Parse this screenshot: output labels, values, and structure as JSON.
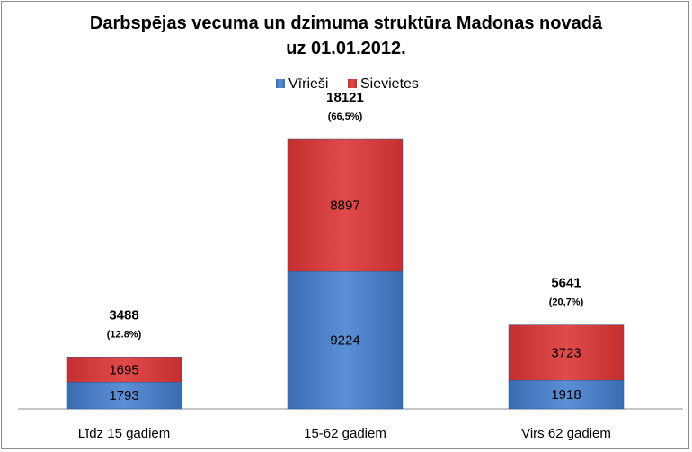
{
  "chart_data": {
    "type": "bar",
    "stacked": true,
    "title": [
      "Darbspējas vecuma un dzimuma struktūra Madonas novadā",
      "uz 01.01.2012."
    ],
    "categories": [
      "Līdz 15 gadiem",
      "15-62 gadiem",
      "Virs 62 gadiem"
    ],
    "series": [
      {
        "name": "Vīrieši",
        "values": [
          1793,
          9224,
          1918
        ],
        "color": "#4a7ebb"
      },
      {
        "name": "Sievietes",
        "values": [
          1695,
          8897,
          3723
        ],
        "color": "#d23a3a"
      }
    ],
    "totals": [
      "3488",
      "18121",
      "5641"
    ],
    "percent_labels": [
      "(12.8%)",
      "(66,5%)",
      "(20,7%)"
    ],
    "ylim": [
      0,
      20000
    ],
    "legend_position": "top",
    "grid": false
  }
}
